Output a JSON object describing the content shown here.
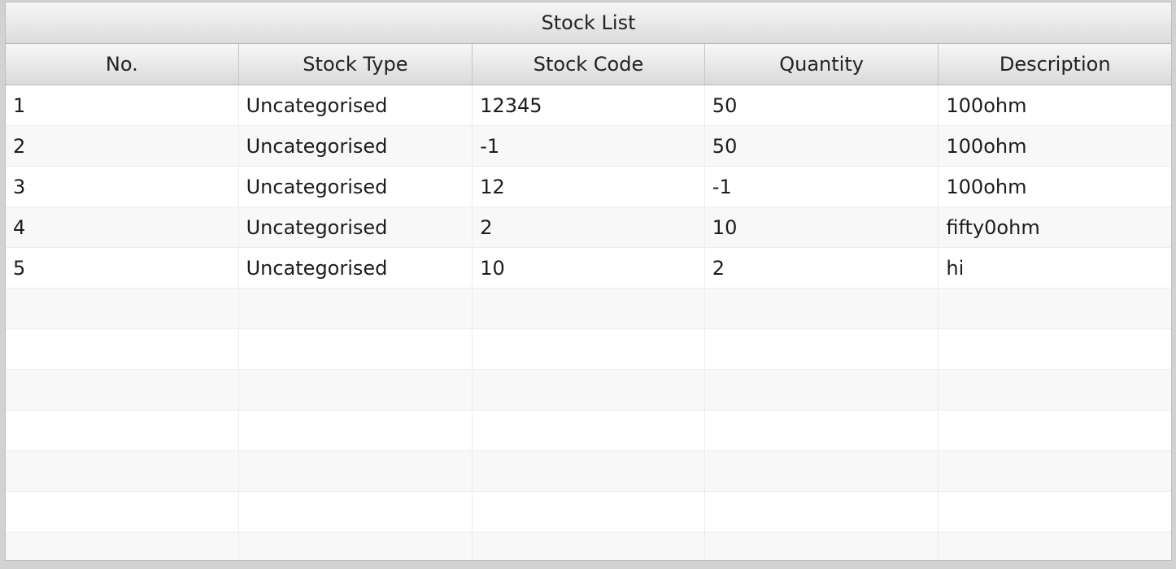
{
  "table": {
    "title": "Stock List",
    "columns": [
      "No.",
      "Stock Type",
      "Stock Code",
      "Quantity",
      "Description"
    ],
    "rows": [
      [
        "1",
        "Uncategorised",
        "12345",
        "50",
        "100ohm"
      ],
      [
        "2",
        "Uncategorised",
        "-1",
        "50",
        "100ohm"
      ],
      [
        "3",
        "Uncategorised",
        "12",
        "-1",
        "100ohm"
      ],
      [
        "4",
        "Uncategorised",
        "2",
        "10",
        "fifty0ohm"
      ],
      [
        "5",
        "Uncategorised",
        "10",
        "2",
        "hi"
      ]
    ]
  }
}
